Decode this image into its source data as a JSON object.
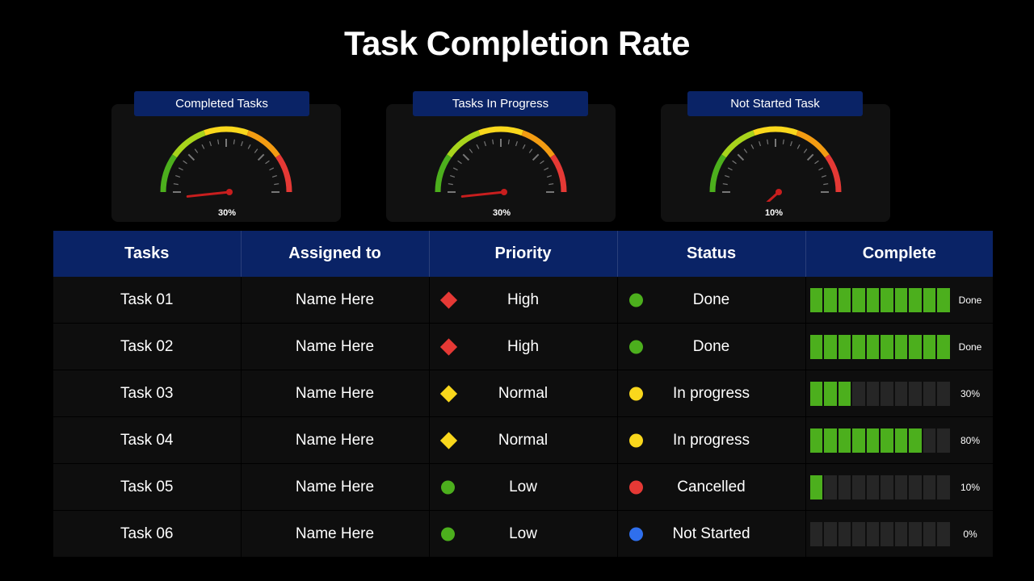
{
  "title": "Task Completion Rate",
  "gauges": [
    {
      "label": "Completed Tasks",
      "value_text": "30%",
      "value": 30
    },
    {
      "label": "Tasks In Progress",
      "value_text": "30%",
      "value": 30
    },
    {
      "label": "Not Started Task",
      "value_text": "10%",
      "value": 10
    }
  ],
  "table": {
    "headers": [
      "Tasks",
      "Assigned to",
      "Priority",
      "Status",
      "Complete"
    ],
    "rows": [
      {
        "task": "Task 01",
        "assigned": "Name Here",
        "priority": "High",
        "priority_shape": "diamond",
        "priority_color": "#e53935",
        "status": "Done",
        "status_color": "#4caf1d",
        "complete_text": "Done",
        "complete_fraction": 1.0
      },
      {
        "task": "Task 02",
        "assigned": "Name Here",
        "priority": "High",
        "priority_shape": "diamond",
        "priority_color": "#e53935",
        "status": "Done",
        "status_color": "#4caf1d",
        "complete_text": "Done",
        "complete_fraction": 1.0
      },
      {
        "task": "Task 03",
        "assigned": "Name Here",
        "priority": "Normal",
        "priority_shape": "diamond",
        "priority_color": "#f9d71c",
        "status": "In progress",
        "status_color": "#f9d71c",
        "complete_text": "30%",
        "complete_fraction": 0.3
      },
      {
        "task": "Task 04",
        "assigned": "Name Here",
        "priority": "Normal",
        "priority_shape": "diamond",
        "priority_color": "#f9d71c",
        "status": "In progress",
        "status_color": "#f9d71c",
        "complete_text": "80%",
        "complete_fraction": 0.8
      },
      {
        "task": "Task 05",
        "assigned": "Name Here",
        "priority": "Low",
        "priority_shape": "circle",
        "priority_color": "#4caf1d",
        "status": "Cancelled",
        "status_color": "#e53935",
        "complete_text": "10%",
        "complete_fraction": 0.1
      },
      {
        "task": "Task 06",
        "assigned": "Name Here",
        "priority": "Low",
        "priority_shape": "circle",
        "priority_color": "#4caf1d",
        "status": "Not Started",
        "status_color": "#2f6fed",
        "complete_text": "0%",
        "complete_fraction": 0.0
      }
    ]
  },
  "colors": {
    "header_bg": "#0a2366",
    "bar_on": "#4caf1d",
    "bar_off": "#262626",
    "gauge_needle": "#c81e1e"
  }
}
